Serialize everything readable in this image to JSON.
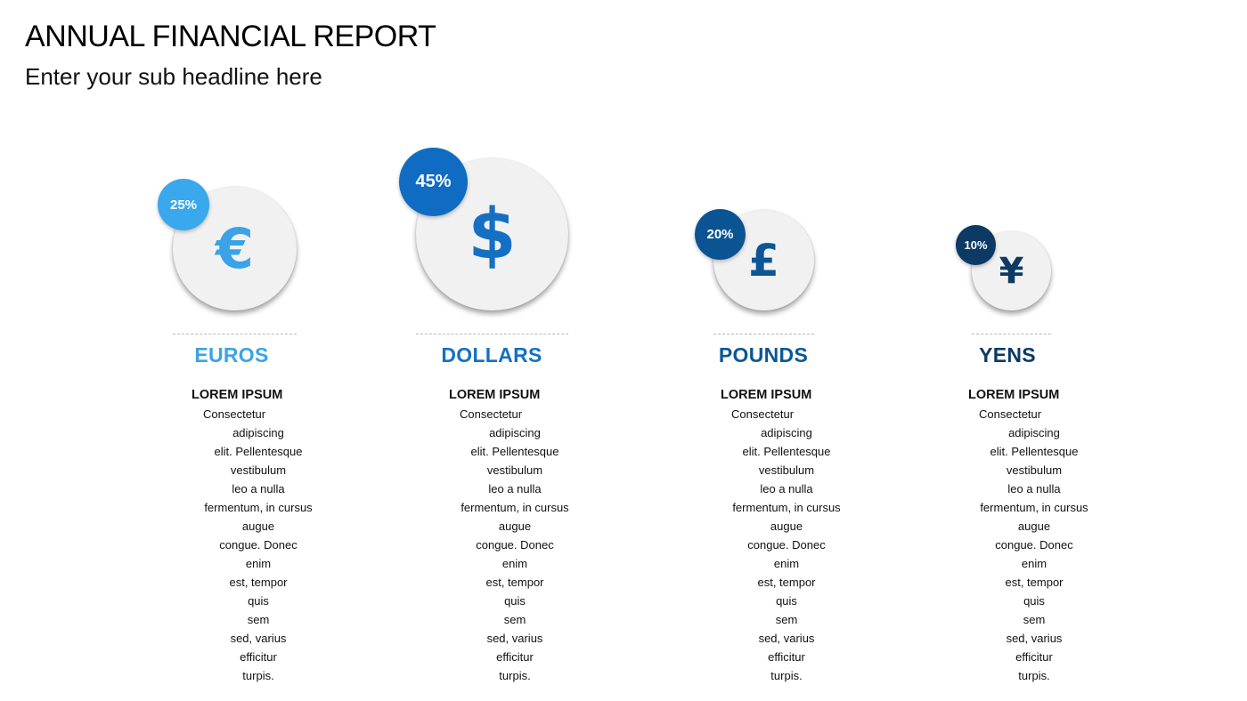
{
  "title": "ANNUAL FINANCIAL REPORT",
  "subtitle": "Enter your sub headline here",
  "currencies": [
    {
      "name": "EUROS",
      "symbol": "€",
      "icon": "euro-icon",
      "percent_label": "25%",
      "percent": 25,
      "color": "#3aa3e8",
      "badge_color": "#3aa8ec",
      "text_heading": "LOREM IPSUM",
      "text_lines": [
        "Consectetur",
        "adipiscing",
        "elit. Pellentesque",
        "vestibulum",
        "leo a nulla",
        "fermentum, in cursus",
        "augue",
        "congue. Donec",
        "enim",
        "est, tempor",
        "quis",
        "sem",
        "sed, varius",
        "efficitur",
        "turpis."
      ]
    },
    {
      "name": "DOLLARS",
      "symbol": "$",
      "icon": "dollar-icon",
      "percent_label": "45%",
      "percent": 45,
      "color": "#1570c4",
      "badge_color": "#0f6cc2",
      "text_heading": "LOREM IPSUM",
      "text_lines": [
        "Consectetur",
        "adipiscing",
        "elit. Pellentesque",
        "vestibulum",
        "leo a nulla",
        "fermentum, in cursus",
        "augue",
        "congue. Donec",
        "enim",
        "est, tempor",
        "quis",
        "sem",
        "sed, varius",
        "efficitur",
        "turpis."
      ]
    },
    {
      "name": "POUNDS",
      "symbol": "£",
      "icon": "pound-icon",
      "percent_label": "20%",
      "percent": 20,
      "color": "#0b5796",
      "badge_color": "#0b5494",
      "text_heading": "LOREM IPSUM",
      "text_lines": [
        "Consectetur",
        "adipiscing",
        "elit. Pellentesque",
        "vestibulum",
        "leo a nulla",
        "fermentum, in cursus",
        "augue",
        "congue. Donec",
        "enim",
        "est, tempor",
        "quis",
        "sem",
        "sed, varius",
        "efficitur",
        "turpis."
      ]
    },
    {
      "name": "YENS",
      "symbol": "¥",
      "icon": "yen-icon",
      "percent_label": "10%",
      "percent": 10,
      "color": "#0c3a63",
      "badge_color": "#0d3a64",
      "text_heading": "LOREM IPSUM",
      "text_lines": [
        "Consectetur",
        "adipiscing",
        "elit. Pellentesque",
        "vestibulum",
        "leo a nulla",
        "fermentum, in cursus",
        "augue",
        "congue. Donec",
        "enim",
        "est, tempor",
        "quis",
        "sem",
        "sed, varius",
        "efficitur",
        "turpis."
      ]
    }
  ]
}
